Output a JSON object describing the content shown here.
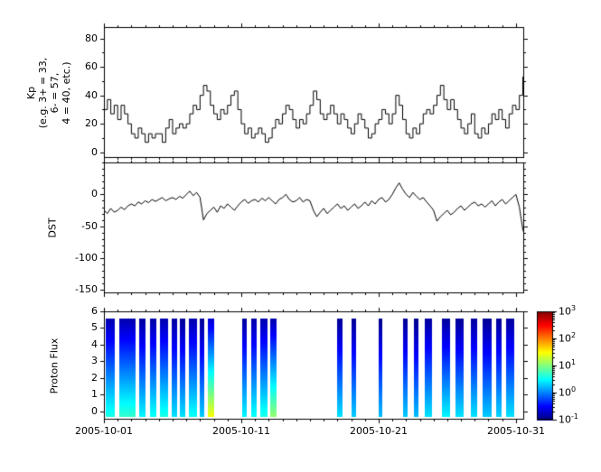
{
  "figure": {
    "background": "#ffffff",
    "axes_color": "#000000",
    "x_axis": {
      "range_days": [
        1,
        31.6
      ],
      "minor_step_days": 1,
      "ticks": [
        {
          "day": 1,
          "label": "2005-10-01"
        },
        {
          "day": 11,
          "label": "2005-10-11"
        },
        {
          "day": 21,
          "label": "2005-10-21"
        },
        {
          "day": 31,
          "label": "2005-10-31"
        }
      ]
    }
  },
  "chart_data": [
    {
      "id": "kp",
      "type": "line",
      "line_style": "step",
      "line_color": "#000000",
      "ylabel_lines": [
        "Kp",
        "(e.g. 3+ = 33,",
        "6- = 57,",
        "4 = 40, etc.)"
      ],
      "ylim": [
        -4,
        88
      ],
      "yticks": [
        0,
        20,
        40,
        60,
        80
      ],
      "y_minor_step": 10,
      "x_start_day": 1,
      "x_step_days": 0.25,
      "values": [
        30,
        37,
        27,
        33,
        23,
        33,
        27,
        20,
        13,
        10,
        17,
        13,
        7,
        13,
        10,
        13,
        13,
        7,
        17,
        23,
        13,
        17,
        20,
        17,
        20,
        27,
        33,
        30,
        40,
        47,
        43,
        33,
        27,
        23,
        30,
        27,
        33,
        40,
        43,
        30,
        20,
        13,
        17,
        10,
        13,
        17,
        13,
        7,
        10,
        17,
        23,
        20,
        27,
        33,
        30,
        23,
        17,
        23,
        20,
        27,
        33,
        43,
        37,
        27,
        23,
        27,
        33,
        27,
        20,
        27,
        23,
        17,
        13,
        20,
        27,
        23,
        17,
        10,
        13,
        20,
        23,
        30,
        27,
        20,
        27,
        40,
        33,
        23,
        13,
        10,
        17,
        13,
        20,
        27,
        30,
        27,
        33,
        40,
        47,
        37,
        30,
        37,
        30,
        23,
        17,
        13,
        20,
        27,
        13,
        10,
        17,
        13,
        20,
        27,
        23,
        30,
        23,
        17,
        27,
        33,
        30,
        40,
        53,
        37
      ]
    },
    {
      "id": "dst",
      "type": "line",
      "line_style": "linear",
      "line_color": "#000000",
      "ylabel_lines": [
        "DST"
      ],
      "ylim": [
        -155,
        50
      ],
      "yticks": [
        0,
        -50,
        -100,
        -150
      ],
      "y_minor_step": 10,
      "x_start_day": 1,
      "x_step_days": 0.25,
      "values": [
        -25,
        -30,
        -22,
        -28,
        -25,
        -20,
        -24,
        -18,
        -15,
        -18,
        -12,
        -15,
        -10,
        -13,
        -8,
        -11,
        -8,
        -5,
        -10,
        -7,
        -5,
        -8,
        -3,
        -6,
        0,
        5,
        -2,
        3,
        -5,
        -40,
        -30,
        -25,
        -20,
        -28,
        -18,
        -22,
        -15,
        -20,
        -25,
        -18,
        -12,
        -8,
        -14,
        -10,
        -8,
        -12,
        -6,
        -10,
        -5,
        -10,
        -15,
        -8,
        -5,
        0,
        -8,
        -12,
        -10,
        -5,
        -12,
        -8,
        -10,
        -25,
        -35,
        -28,
        -22,
        -30,
        -25,
        -20,
        -15,
        -22,
        -18,
        -25,
        -20,
        -15,
        -22,
        -18,
        -12,
        -18,
        -10,
        -15,
        -8,
        -5,
        -12,
        -8,
        0,
        10,
        18,
        8,
        0,
        -5,
        3,
        -3,
        -8,
        -5,
        -12,
        -18,
        -25,
        -42,
        -35,
        -30,
        -25,
        -32,
        -28,
        -22,
        -18,
        -25,
        -20,
        -15,
        -12,
        -18,
        -15,
        -20,
        -15,
        -10,
        -18,
        -12,
        -8,
        -15,
        -10,
        -5,
        0,
        -20,
        -55,
        -70
      ]
    },
    {
      "id": "proton_flux",
      "type": "heatmap",
      "ylabel_lines": [
        "Proton Flux"
      ],
      "ylim": [
        -0.5,
        6
      ],
      "yticks": [
        0,
        1,
        2,
        3,
        4,
        5,
        6
      ],
      "y_minor_step": null,
      "colormap": "jet",
      "value_scale": "log10",
      "value_range": [
        0.1,
        1000
      ],
      "stripe_y_range": [
        -0.3,
        5.6
      ],
      "stripe_fields": [
        "x0_day",
        "x1_day",
        "flux_bottom",
        "flux_top"
      ],
      "stripes": [
        [
          1.15,
          1.8,
          4,
          0.15
        ],
        [
          2.1,
          3.3,
          5,
          0.15
        ],
        [
          3.55,
          4.05,
          3,
          0.13
        ],
        [
          4.35,
          4.8,
          3.5,
          0.14
        ],
        [
          5.1,
          5.7,
          4,
          0.15
        ],
        [
          5.95,
          6.3,
          2.5,
          0.13
        ],
        [
          6.55,
          6.9,
          2.5,
          0.12
        ],
        [
          7.2,
          7.8,
          3.5,
          0.15
        ],
        [
          8.0,
          8.3,
          2,
          0.12
        ],
        [
          8.55,
          9.0,
          30,
          0.2
        ],
        [
          11.05,
          11.4,
          3,
          0.13
        ],
        [
          11.7,
          12.1,
          3.5,
          0.14
        ],
        [
          12.4,
          12.9,
          4,
          0.15
        ],
        [
          13.1,
          13.6,
          12,
          0.15
        ],
        [
          18.0,
          18.4,
          2.5,
          0.12
        ],
        [
          19.0,
          19.35,
          2,
          0.12
        ],
        [
          21.0,
          21.3,
          1.8,
          0.11
        ],
        [
          22.75,
          23.1,
          2,
          0.12
        ],
        [
          23.6,
          23.9,
          1.8,
          0.11
        ],
        [
          24.35,
          24.9,
          2.5,
          0.13
        ],
        [
          25.6,
          26.2,
          3,
          0.13
        ],
        [
          26.6,
          27.2,
          2.5,
          0.12
        ],
        [
          27.7,
          28.2,
          2.5,
          0.13
        ],
        [
          28.6,
          29.2,
          2,
          0.12
        ],
        [
          29.55,
          29.95,
          2.2,
          0.12
        ],
        [
          30.3,
          30.85,
          2.5,
          0.13
        ]
      ],
      "colorbar": {
        "scale": "log",
        "range": [
          0.1,
          1000
        ],
        "tick_values": [
          1000,
          100,
          10,
          1,
          0.1
        ],
        "tick_labels": [
          "10^3",
          "10^2",
          "10^1",
          "10^0",
          "10^-1"
        ]
      }
    }
  ]
}
